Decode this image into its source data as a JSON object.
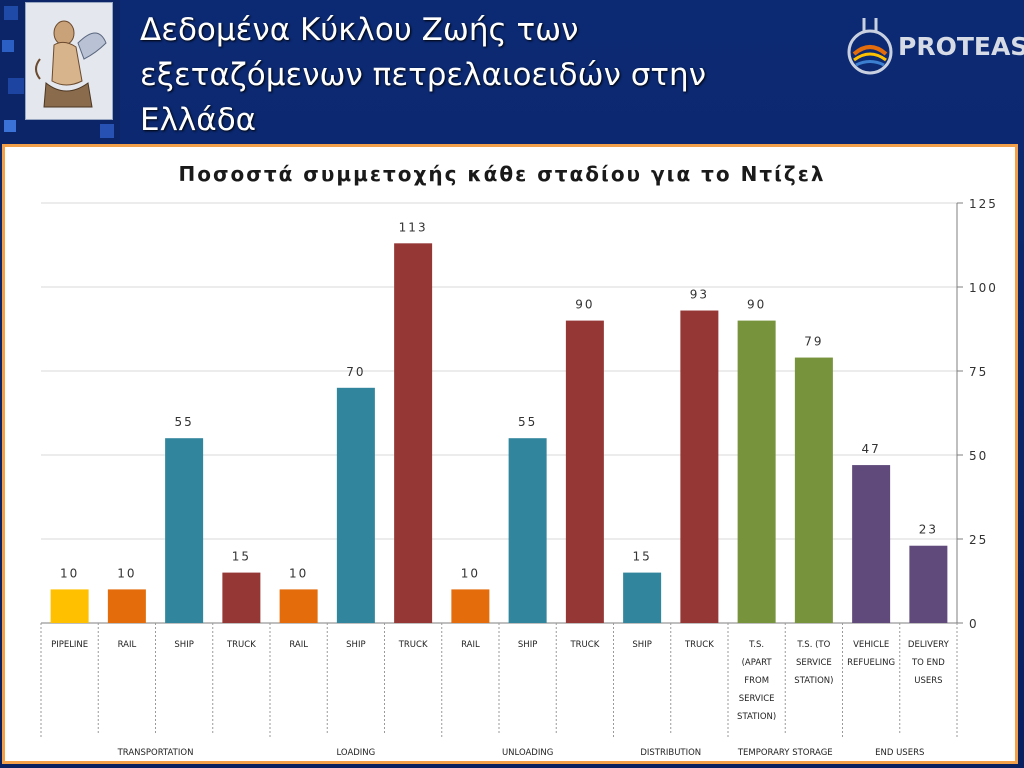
{
  "slide": {
    "title_line1": "Δεδομένα Κύκλου Ζωής των",
    "title_line2": "εξεταζόμενων  πετρελαιοειδών στην",
    "title_line3": "Ελλάδα",
    "brand": "PROTEAS"
  },
  "colors": {
    "background": "#0c2a74",
    "frame": "#f2a14a",
    "yellow": "#ffc000",
    "orange": "#e46c0a",
    "teal": "#31859c",
    "red": "#953735",
    "green": "#77933c",
    "purple": "#604a7b"
  },
  "chart_data": {
    "type": "bar",
    "title": "Ποσοστά συμμετοχής κάθε σταδίου για το Ντίζελ",
    "ylim": [
      0,
      125
    ],
    "y_ticks": [
      0,
      25,
      50,
      75,
      100,
      125
    ],
    "y_axis_side": "right",
    "grid": true,
    "bars": [
      {
        "label": "PIPELINE",
        "group": "TRANSPORTATION",
        "value": 10,
        "color": "#ffc000"
      },
      {
        "label": "RAIL",
        "group": "TRANSPORTATION",
        "value": 10,
        "color": "#e46c0a"
      },
      {
        "label": "SHIP",
        "group": "TRANSPORTATION",
        "value": 55,
        "color": "#31859c"
      },
      {
        "label": "TRUCK",
        "group": "TRANSPORTATION",
        "value": 15,
        "color": "#953735"
      },
      {
        "label": "RAIL",
        "group": "LOADING",
        "value": 10,
        "color": "#e46c0a"
      },
      {
        "label": "SHIP",
        "group": "LOADING",
        "value": 70,
        "color": "#31859c"
      },
      {
        "label": "TRUCK",
        "group": "LOADING",
        "value": 113,
        "color": "#953735"
      },
      {
        "label": "RAIL",
        "group": "UNLOADING",
        "value": 10,
        "color": "#e46c0a"
      },
      {
        "label": "SHIP",
        "group": "UNLOADING",
        "value": 55,
        "color": "#31859c"
      },
      {
        "label": "TRUCK",
        "group": "UNLOADING",
        "value": 90,
        "color": "#953735"
      },
      {
        "label": "SHIP",
        "group": "DISTRIBUTION",
        "value": 15,
        "color": "#31859c"
      },
      {
        "label": "TRUCK",
        "group": "DISTRIBUTION",
        "value": 93,
        "color": "#953735"
      },
      {
        "label": "T.S. (APART FROM SERVICE STATION)",
        "group": "TEMPORARY STORAGE",
        "value": 90,
        "color": "#77933c"
      },
      {
        "label": "T.S. (TO SERVICE STATION)",
        "group": "TEMPORARY STORAGE",
        "value": 79,
        "color": "#77933c"
      },
      {
        "label": "VEHICLE REFUELING",
        "group": "END USERS",
        "value": 47,
        "color": "#604a7b"
      },
      {
        "label": "DELIVERY TO END USERS",
        "group": "END USERS",
        "value": 23,
        "color": "#604a7b"
      }
    ],
    "groups": [
      {
        "name": "TRANSPORTATION",
        "count": 4
      },
      {
        "name": "LOADING",
        "count": 3
      },
      {
        "name": "UNLOADING",
        "count": 3
      },
      {
        "name": "DISTRIBUTION",
        "count": 2
      },
      {
        "name": "TEMPORARY STORAGE",
        "count": 2
      },
      {
        "name": "END USERS",
        "count": 2
      }
    ]
  }
}
